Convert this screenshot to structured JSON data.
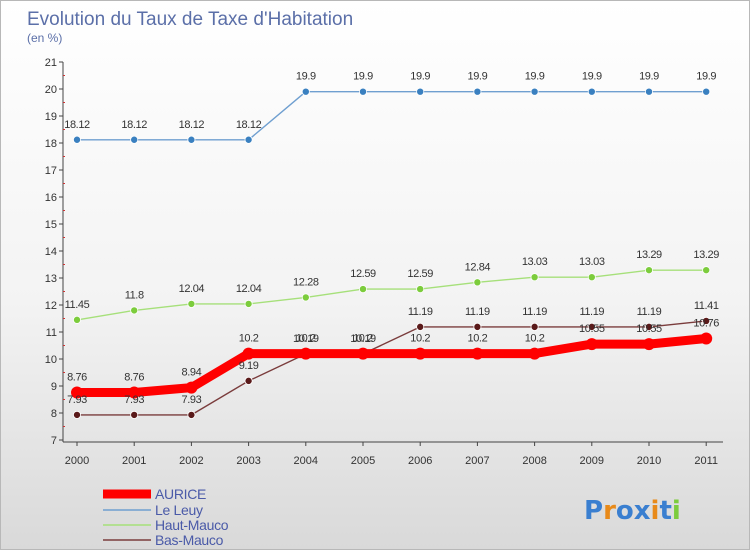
{
  "chart_data": {
    "type": "line",
    "title": "Evolution du Taux de Taxe d'Habitation",
    "subtitle": "(en %)",
    "xlabel": "",
    "ylabel": "",
    "categories": [
      "2000",
      "2001",
      "2002",
      "2003",
      "2004",
      "2005",
      "2006",
      "2007",
      "2008",
      "2009",
      "2010",
      "2011"
    ],
    "ylim": [
      7,
      21
    ],
    "yticks": [
      "7",
      "8",
      "9",
      "10",
      "11",
      "12",
      "13",
      "14",
      "15",
      "16",
      "17",
      "18",
      "19",
      "20",
      "21"
    ],
    "grid": false,
    "legend_position": "bottom-left",
    "series": [
      {
        "name": "Le Leuy",
        "color": "#6f9fd0",
        "point_color": "#3a80c0",
        "values": [
          18.12,
          18.12,
          18.12,
          18.12,
          19.9,
          19.9,
          19.9,
          19.9,
          19.9,
          19.9,
          19.9,
          19.9
        ],
        "labels": [
          "18.12",
          "18.12",
          "18.12",
          "18.12",
          "19.9",
          "19.9",
          "19.9",
          "19.9",
          "19.9",
          "19.9",
          "19.9",
          "19.9"
        ]
      },
      {
        "name": "Haut-Mauco",
        "color": "#a6e07a",
        "point_color": "#7ccc3c",
        "values": [
          11.45,
          11.8,
          12.04,
          12.04,
          12.28,
          12.59,
          12.59,
          12.84,
          13.03,
          13.03,
          13.29,
          13.29
        ],
        "labels": [
          "11.45",
          "11.8",
          "12.04",
          "12.04",
          "12.28",
          "12.59",
          "12.59",
          "12.84",
          "13.03",
          "13.03",
          "13.29",
          "13.29"
        ]
      },
      {
        "name": "Bas-Mauco",
        "color": "#7a3c3c",
        "point_color": "#5a1a1a",
        "values": [
          7.93,
          7.93,
          7.93,
          9.19,
          10.19,
          10.19,
          11.19,
          11.19,
          11.19,
          11.19,
          11.19,
          11.41
        ],
        "labels": [
          "7.93",
          "7.93",
          "7.93",
          "9.19",
          "10.19",
          "10.19",
          "11.19",
          "11.19",
          "11.19",
          "11.19",
          "11.19",
          "11.41"
        ]
      },
      {
        "name": "AURICE",
        "color": "#ff0000",
        "point_color": "#ff0000",
        "values": [
          8.76,
          8.76,
          8.94,
          10.2,
          10.2,
          10.2,
          10.2,
          10.2,
          10.2,
          10.55,
          10.55,
          10.76
        ],
        "labels": [
          "8.76",
          "8.76",
          "8.94",
          "10.2",
          "10.2",
          "10.2",
          "10.2",
          "10.2",
          "10.2",
          "10.55",
          "10.55",
          "10.76"
        ]
      }
    ],
    "legend": [
      "AURICE",
      "Le Leuy",
      "Haut-Mauco",
      "Bas-Mauco"
    ]
  },
  "logo": {
    "text": "Proxiti",
    "letters": [
      "P",
      "r",
      "o",
      "x",
      "i",
      "t",
      "i"
    ],
    "colors": [
      "#3a7fd0",
      "#e88a1a",
      "#3a7fd0",
      "#3a7fd0",
      "#e88a1a",
      "#3a7fd0",
      "#7ccc3c"
    ]
  }
}
